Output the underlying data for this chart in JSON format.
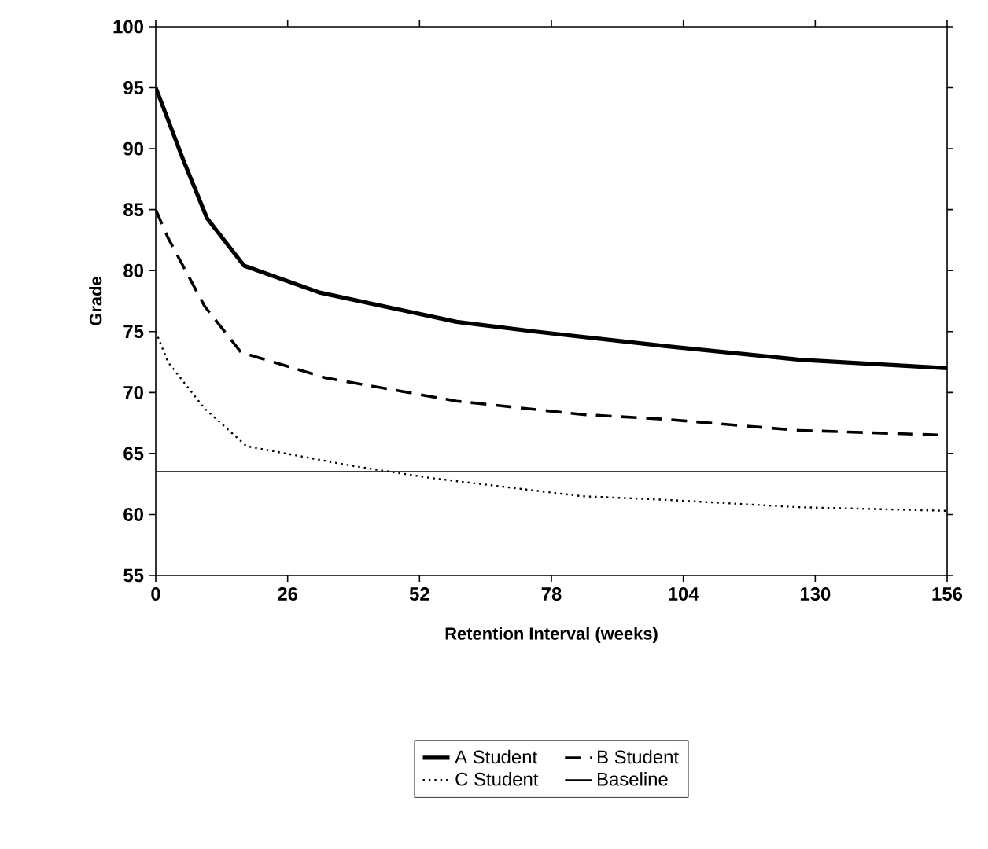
{
  "chart_data": {
    "type": "line",
    "xlabel": "Retention Interval (weeks)",
    "ylabel": "Grade",
    "xlim": [
      0,
      156
    ],
    "ylim": [
      55,
      100
    ],
    "xticks": [
      0,
      26,
      52,
      78,
      104,
      130,
      156
    ],
    "yticks": [
      55,
      60,
      65,
      70,
      75,
      80,
      85,
      90,
      95,
      100
    ],
    "grid": false,
    "legend": "bottom",
    "marker": "none",
    "series": [
      {
        "name": "A Student",
        "color": "#000000",
        "line_style": "solid",
        "x": [
          0,
          5.5,
          10.1,
          17.4,
          32.3,
          59.3,
          74.8,
          100.6,
          126.6,
          156
        ],
        "values": [
          95,
          89,
          84.3,
          80.4,
          78.2,
          75.8,
          75,
          73.8,
          72.7,
          72
        ]
      },
      {
        "name": "B Student",
        "color": "#000000",
        "line_style": "dashed",
        "x": [
          0,
          2.4,
          9.6,
          16.8,
          33.5,
          59.3,
          84,
          100.6,
          126.6,
          156
        ],
        "values": [
          85,
          82.7,
          77.1,
          73.3,
          71.2,
          69.3,
          68.2,
          67.8,
          66.9,
          66.5
        ]
      },
      {
        "name": "C Student",
        "color": "#000000",
        "line_style": "dotted",
        "x": [
          0,
          2.4,
          9.6,
          17.9,
          38.5,
          54,
          84,
          100.6,
          126.6,
          156
        ],
        "values": [
          75,
          72.5,
          68.7,
          65.6,
          64,
          63,
          61.5,
          61.2,
          60.6,
          60.3
        ]
      },
      {
        "name": "Baseline",
        "color": "#000000",
        "line_style": "solid",
        "x": [
          0,
          156
        ],
        "values": [
          63.5,
          63.5
        ]
      }
    ]
  }
}
